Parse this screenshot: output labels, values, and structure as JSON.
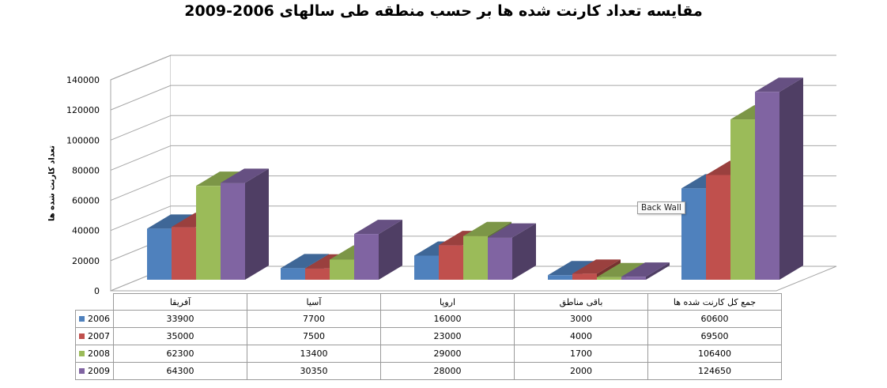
{
  "chart_data": {
    "type": "bar",
    "title": "مقایسه تعداد کارنت شده ها بر حسب منطقه طی سالهای 2006-2009",
    "ylabel": "تعداد کارنت شده ها",
    "xlabel": "",
    "ylim": [
      0,
      140000
    ],
    "y_ticks": [
      "0",
      "20000",
      "40000",
      "60000",
      "80000",
      "100000",
      "120000",
      "140000"
    ],
    "grid": true,
    "legend": "data-table",
    "categories": [
      "آفریقا",
      "آسیا",
      "اروپا",
      "باقی مناطق",
      "جمع کل کارنت شده ها"
    ],
    "series": [
      {
        "name": "2006",
        "color": "#4f81bd",
        "values": [
          33900,
          7700,
          16000,
          3000,
          60600
        ]
      },
      {
        "name": "2007",
        "color": "#c0504d",
        "values": [
          35000,
          7500,
          23000,
          4000,
          69500
        ]
      },
      {
        "name": "2008",
        "color": "#9bbb59",
        "values": [
          62300,
          13400,
          29000,
          1700,
          106400
        ]
      },
      {
        "name": "2009",
        "color": "#8064a2",
        "values": [
          64300,
          30350,
          28000,
          2000,
          124650
        ]
      }
    ],
    "table_values": [
      [
        "33900",
        "7700",
        "16000",
        "3000",
        "60600"
      ],
      [
        "35000",
        "7500",
        "23000",
        "4000",
        "69500"
      ],
      [
        "62300",
        "13400",
        "29000",
        "1700",
        "106400"
      ],
      [
        "64300",
        "30350",
        "28000",
        "2000",
        "124650"
      ]
    ]
  },
  "tooltip": "Back Wall"
}
